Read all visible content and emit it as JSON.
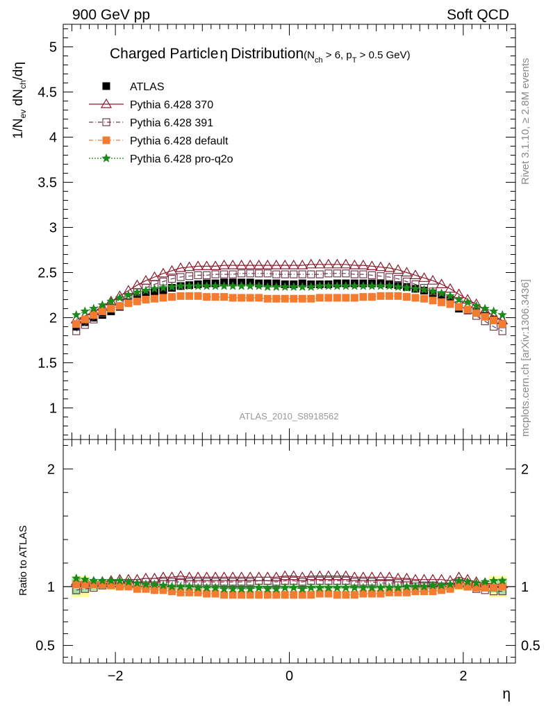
{
  "header": {
    "left": "900 GeV pp",
    "right": "Soft QCD"
  },
  "side_labels": {
    "rivet": "Rivet 3.1.10, ≥ 2.8M events",
    "mcplots": "mcplots.cern.ch [arXiv:1306.3436]"
  },
  "watermark": "ATLAS_2010_S8918562",
  "chart_data": [
    {
      "type": "scatter",
      "title": "Charged Particle η Distribution",
      "title_main": "Charged Particle",
      "title_eta": "η",
      "title_rest": "Distribution",
      "subtitle": {
        "open": "(N",
        "nsub": "ch",
        "gt6": " > 6, p",
        "psub": "T",
        "tail": " > 0.5 GeV)"
      },
      "ylabel": {
        "a": "1/N",
        "asub": "ev",
        "b": " dN",
        "bsub": "ch",
        "c": "/dη"
      },
      "xlim": [
        -2.6,
        2.6
      ],
      "ylim": [
        0.65,
        5.25
      ],
      "yticks": [
        1,
        1.5,
        2,
        2.5,
        3,
        3.5,
        4,
        4.5,
        5
      ],
      "ytick_labels": [
        "1",
        "1.5",
        "2",
        "2.5",
        "3",
        "3.5",
        "4",
        "4.5",
        "5"
      ],
      "legend_position": "top-left",
      "legend": [
        {
          "label": "ATLAS",
          "color": "#000000",
          "marker": "filled-square",
          "line": "none"
        },
        {
          "label": "Pythia 6.428 370",
          "color": "#8b1a2b",
          "marker": "open-triangle",
          "line": "solid"
        },
        {
          "label": "Pythia 6.428 391",
          "color": "#6e3b4e",
          "marker": "open-square",
          "line": "dash-dot"
        },
        {
          "label": "Pythia 6.428 default",
          "color": "#f47c30",
          "marker": "filled-square",
          "line": "dash-dot"
        },
        {
          "label": "Pythia 6.428 pro-q2o",
          "color": "#1a8a1a",
          "marker": "star",
          "line": "dotted"
        }
      ],
      "x": [
        -2.45,
        -2.35,
        -2.25,
        -2.15,
        -2.05,
        -1.95,
        -1.85,
        -1.75,
        -1.65,
        -1.55,
        -1.45,
        -1.35,
        -1.25,
        -1.15,
        -1.05,
        -0.95,
        -0.85,
        -0.75,
        -0.65,
        -0.55,
        -0.45,
        -0.35,
        -0.25,
        -0.15,
        -0.05,
        0.05,
        0.15,
        0.25,
        0.35,
        0.45,
        0.55,
        0.65,
        0.75,
        0.85,
        0.95,
        1.05,
        1.15,
        1.25,
        1.35,
        1.45,
        1.55,
        1.65,
        1.75,
        1.85,
        1.95,
        2.05,
        2.15,
        2.25,
        2.35,
        2.45
      ],
      "series": [
        {
          "name": "ATLAS",
          "values": [
            1.9,
            1.95,
            2.0,
            2.03,
            2.07,
            2.12,
            2.17,
            2.22,
            2.25,
            2.28,
            2.3,
            2.33,
            2.35,
            2.36,
            2.37,
            2.38,
            2.38,
            2.39,
            2.39,
            2.39,
            2.39,
            2.38,
            2.38,
            2.38,
            2.37,
            2.37,
            2.38,
            2.37,
            2.37,
            2.37,
            2.38,
            2.38,
            2.38,
            2.38,
            2.38,
            2.38,
            2.37,
            2.36,
            2.34,
            2.32,
            2.3,
            2.27,
            2.24,
            2.2,
            2.1,
            2.08,
            2.06,
            2.02,
            1.98,
            1.93
          ]
        },
        {
          "name": "Pythia 6.428 370",
          "values": [
            1.98,
            2.02,
            2.07,
            2.12,
            2.18,
            2.24,
            2.3,
            2.36,
            2.41,
            2.45,
            2.49,
            2.52,
            2.55,
            2.56,
            2.57,
            2.57,
            2.57,
            2.58,
            2.58,
            2.58,
            2.58,
            2.58,
            2.58,
            2.58,
            2.58,
            2.58,
            2.58,
            2.59,
            2.59,
            2.59,
            2.59,
            2.59,
            2.58,
            2.58,
            2.57,
            2.56,
            2.55,
            2.53,
            2.5,
            2.47,
            2.44,
            2.41,
            2.37,
            2.32,
            2.26,
            2.2,
            2.15,
            2.08,
            2.02,
            1.97
          ]
        },
        {
          "name": "Pythia 6.428 391",
          "values": [
            1.85,
            1.92,
            1.98,
            2.05,
            2.11,
            2.17,
            2.23,
            2.28,
            2.33,
            2.37,
            2.4,
            2.43,
            2.45,
            2.46,
            2.47,
            2.47,
            2.48,
            2.48,
            2.48,
            2.49,
            2.49,
            2.49,
            2.49,
            2.48,
            2.48,
            2.48,
            2.48,
            2.48,
            2.48,
            2.49,
            2.49,
            2.49,
            2.48,
            2.48,
            2.47,
            2.46,
            2.45,
            2.43,
            2.4,
            2.37,
            2.33,
            2.29,
            2.25,
            2.2,
            2.14,
            2.08,
            2.02,
            1.96,
            1.9,
            1.85
          ]
        },
        {
          "name": "Pythia 6.428 default",
          "values": [
            1.93,
            1.98,
            2.03,
            2.07,
            2.1,
            2.13,
            2.16,
            2.18,
            2.2,
            2.21,
            2.22,
            2.23,
            2.24,
            2.24,
            2.24,
            2.23,
            2.23,
            2.23,
            2.22,
            2.22,
            2.22,
            2.22,
            2.21,
            2.21,
            2.21,
            2.21,
            2.21,
            2.21,
            2.22,
            2.22,
            2.22,
            2.22,
            2.22,
            2.23,
            2.23,
            2.24,
            2.24,
            2.24,
            2.23,
            2.22,
            2.21,
            2.19,
            2.17,
            2.15,
            2.12,
            2.09,
            2.05,
            2.01,
            1.97,
            1.93
          ]
        },
        {
          "name": "Pythia 6.428 pro-q2o",
          "values": [
            2.03,
            2.07,
            2.1,
            2.14,
            2.18,
            2.22,
            2.25,
            2.28,
            2.3,
            2.32,
            2.33,
            2.34,
            2.35,
            2.35,
            2.35,
            2.35,
            2.35,
            2.35,
            2.35,
            2.35,
            2.35,
            2.35,
            2.34,
            2.34,
            2.34,
            2.34,
            2.34,
            2.34,
            2.35,
            2.35,
            2.35,
            2.35,
            2.35,
            2.35,
            2.35,
            2.35,
            2.35,
            2.34,
            2.33,
            2.32,
            2.31,
            2.29,
            2.27,
            2.24,
            2.2,
            2.17,
            2.13,
            2.1,
            2.07,
            2.03
          ]
        }
      ]
    },
    {
      "type": "scatter",
      "title": "",
      "ylabel": "Ratio to ATLAS",
      "xlabel": "η",
      "xlim": [
        -2.6,
        2.6
      ],
      "ylim": [
        0.35,
        2.25
      ],
      "xticks": [
        -2,
        0,
        2
      ],
      "xtick_labels": [
        "−2",
        "0",
        "2"
      ],
      "yticks": [
        0.5,
        1,
        2
      ],
      "ytick_labels": [
        "0.5",
        "1",
        "2"
      ],
      "reference_line": 1,
      "uncertainty_band": {
        "inner_color": "#a6e3a6",
        "outer_color": "#ffff99",
        "halfwidth_inner": [
          0.07,
          0.05,
          0.03,
          0.02,
          0.02,
          0.02,
          0.02,
          0.02,
          0.02,
          0.02,
          0.02,
          0.02,
          0.02,
          0.02,
          0.02,
          0.02,
          0.02,
          0.02,
          0.02,
          0.02,
          0.02,
          0.02,
          0.02,
          0.02,
          0.02,
          0.02,
          0.02,
          0.02,
          0.02,
          0.02,
          0.02,
          0.02,
          0.02,
          0.02,
          0.02,
          0.02,
          0.02,
          0.02,
          0.02,
          0.02,
          0.02,
          0.02,
          0.02,
          0.02,
          0.02,
          0.02,
          0.02,
          0.03,
          0.05,
          0.07
        ],
        "halfwidth_outer": [
          0.09,
          0.09,
          0.04,
          0.03,
          0.03,
          0.03,
          0.02,
          0.02,
          0.02,
          0.02,
          0.02,
          0.02,
          0.02,
          0.02,
          0.02,
          0.02,
          0.02,
          0.02,
          0.02,
          0.02,
          0.02,
          0.02,
          0.02,
          0.02,
          0.02,
          0.02,
          0.02,
          0.02,
          0.02,
          0.02,
          0.02,
          0.02,
          0.02,
          0.02,
          0.02,
          0.02,
          0.02,
          0.02,
          0.02,
          0.02,
          0.02,
          0.02,
          0.02,
          0.02,
          0.03,
          0.03,
          0.03,
          0.04,
          0.09,
          0.09
        ]
      },
      "series": [
        {
          "name": "Pythia 6.428 370",
          "values": [
            1.04,
            1.04,
            1.04,
            1.04,
            1.05,
            1.06,
            1.06,
            1.06,
            1.07,
            1.07,
            1.08,
            1.08,
            1.09,
            1.08,
            1.08,
            1.08,
            1.08,
            1.08,
            1.08,
            1.08,
            1.08,
            1.08,
            1.08,
            1.08,
            1.09,
            1.09,
            1.08,
            1.09,
            1.09,
            1.09,
            1.09,
            1.09,
            1.08,
            1.08,
            1.08,
            1.08,
            1.08,
            1.07,
            1.07,
            1.06,
            1.06,
            1.06,
            1.06,
            1.05,
            1.08,
            1.06,
            1.04,
            1.03,
            1.02,
            1.02
          ]
        },
        {
          "name": "Pythia 6.428 391",
          "values": [
            0.97,
            0.98,
            0.99,
            1.01,
            1.02,
            1.02,
            1.03,
            1.03,
            1.04,
            1.04,
            1.04,
            1.04,
            1.04,
            1.04,
            1.04,
            1.04,
            1.04,
            1.04,
            1.04,
            1.04,
            1.04,
            1.05,
            1.05,
            1.04,
            1.05,
            1.05,
            1.04,
            1.05,
            1.05,
            1.05,
            1.05,
            1.05,
            1.04,
            1.04,
            1.04,
            1.03,
            1.03,
            1.03,
            1.03,
            1.02,
            1.01,
            1.01,
            1.0,
            1.0,
            1.02,
            1.0,
            0.98,
            0.97,
            0.96,
            0.96
          ]
        },
        {
          "name": "Pythia 6.428 default",
          "values": [
            1.02,
            1.02,
            1.02,
            1.02,
            1.01,
            1.0,
            1.0,
            0.98,
            0.98,
            0.97,
            0.97,
            0.96,
            0.95,
            0.95,
            0.95,
            0.94,
            0.94,
            0.93,
            0.93,
            0.93,
            0.93,
            0.93,
            0.93,
            0.93,
            0.93,
            0.93,
            0.93,
            0.93,
            0.94,
            0.94,
            0.93,
            0.93,
            0.93,
            0.94,
            0.94,
            0.94,
            0.95,
            0.95,
            0.95,
            0.96,
            0.96,
            0.96,
            0.97,
            0.98,
            1.01,
            1.0,
            0.99,
            0.99,
            0.99,
            1.0
          ]
        },
        {
          "name": "Pythia 6.428 pro-q2o",
          "values": [
            1.07,
            1.06,
            1.05,
            1.05,
            1.05,
            1.05,
            1.04,
            1.03,
            1.02,
            1.02,
            1.01,
            1.0,
            1.0,
            1.0,
            0.99,
            0.99,
            0.99,
            0.98,
            0.98,
            0.98,
            0.98,
            0.99,
            0.98,
            0.98,
            0.99,
            0.99,
            0.98,
            0.99,
            0.99,
            0.99,
            0.99,
            0.99,
            0.99,
            0.99,
            0.99,
            0.99,
            0.99,
            0.99,
            1.0,
            1.0,
            1.0,
            1.01,
            1.01,
            1.02,
            1.05,
            1.04,
            1.03,
            1.04,
            1.05,
            1.05
          ]
        }
      ]
    }
  ]
}
